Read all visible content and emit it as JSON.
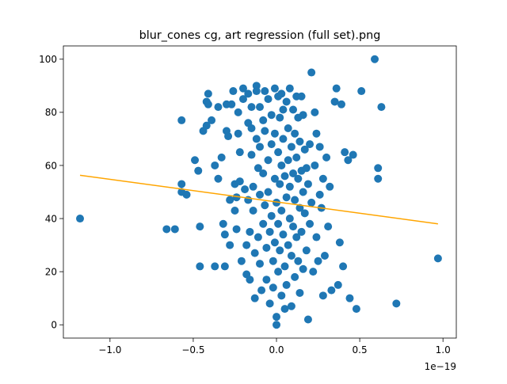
{
  "chart_data": {
    "type": "scatter",
    "title": "blur_cones cg, art regression (full set).png",
    "xlabel": "",
    "ylabel": "",
    "x_offset_text": "1e−19",
    "xlim": [
      -1.28,
      1.08
    ],
    "ylim": [
      -5,
      105
    ],
    "x_ticks": [
      -1.0,
      -0.5,
      0.0,
      0.5,
      1.0
    ],
    "x_tick_labels": [
      "−1.0",
      "−0.5",
      "0.0",
      "0.5",
      "1.0"
    ],
    "y_ticks": [
      0,
      20,
      40,
      60,
      80,
      100
    ],
    "y_tick_labels": [
      "0",
      "20",
      "40",
      "60",
      "80",
      "100"
    ],
    "grid": false,
    "colors": {
      "points": "#1f77b4",
      "regression": "#ffa500"
    },
    "series": [
      {
        "kind": "points",
        "points": [
          [
            -1.18,
            40
          ],
          [
            -0.66,
            36
          ],
          [
            -0.61,
            36
          ],
          [
            -0.57,
            77
          ],
          [
            -0.57,
            53
          ],
          [
            -0.57,
            50
          ],
          [
            -0.54,
            49
          ],
          [
            -0.49,
            62
          ],
          [
            -0.47,
            58
          ],
          [
            -0.46,
            37
          ],
          [
            -0.46,
            22
          ],
          [
            -0.44,
            73
          ],
          [
            -0.42,
            75
          ],
          [
            -0.42,
            84
          ],
          [
            -0.41,
            87
          ],
          [
            -0.41,
            83
          ],
          [
            -0.39,
            77
          ],
          [
            -0.37,
            60
          ],
          [
            -0.37,
            22
          ],
          [
            -0.35,
            55
          ],
          [
            -0.35,
            82
          ],
          [
            -0.33,
            63
          ],
          [
            -0.32,
            38
          ],
          [
            -0.31,
            34
          ],
          [
            -0.31,
            22
          ],
          [
            -0.3,
            83
          ],
          [
            -0.3,
            73
          ],
          [
            -0.29,
            71
          ],
          [
            -0.28,
            47
          ],
          [
            -0.28,
            30
          ],
          [
            -0.27,
            83
          ],
          [
            -0.26,
            88
          ],
          [
            -0.25,
            53
          ],
          [
            -0.25,
            43
          ],
          [
            -0.24,
            48
          ],
          [
            -0.24,
            36
          ],
          [
            -0.23,
            80
          ],
          [
            -0.23,
            72
          ],
          [
            -0.22,
            65
          ],
          [
            -0.22,
            54
          ],
          [
            -0.21,
            24
          ],
          [
            -0.2,
            89
          ],
          [
            -0.2,
            85
          ],
          [
            -0.19,
            51
          ],
          [
            -0.18,
            19
          ],
          [
            -0.18,
            30
          ],
          [
            -0.17,
            87
          ],
          [
            -0.17,
            76
          ],
          [
            -0.17,
            47
          ],
          [
            -0.16,
            35
          ],
          [
            -0.16,
            17
          ],
          [
            -0.15,
            82
          ],
          [
            -0.15,
            74
          ],
          [
            -0.15,
            64
          ],
          [
            -0.14,
            52
          ],
          [
            -0.14,
            43
          ],
          [
            -0.13,
            27
          ],
          [
            -0.13,
            10
          ],
          [
            -0.12,
            90
          ],
          [
            -0.12,
            88
          ],
          [
            -0.12,
            70
          ],
          [
            -0.11,
            59
          ],
          [
            -0.11,
            33
          ],
          [
            -0.1,
            82
          ],
          [
            -0.1,
            67
          ],
          [
            -0.1,
            49
          ],
          [
            -0.1,
            23
          ],
          [
            -0.09,
            13
          ],
          [
            -0.08,
            77
          ],
          [
            -0.08,
            57
          ],
          [
            -0.08,
            38
          ],
          [
            -0.07,
            88
          ],
          [
            -0.07,
            73
          ],
          [
            -0.07,
            45
          ],
          [
            -0.06,
            29
          ],
          [
            -0.06,
            17
          ],
          [
            -0.05,
            85
          ],
          [
            -0.05,
            62
          ],
          [
            -0.05,
            50
          ],
          [
            -0.04,
            35
          ],
          [
            -0.04,
            8
          ],
          [
            -0.03,
            79
          ],
          [
            -0.03,
            68
          ],
          [
            -0.03,
            41
          ],
          [
            -0.02,
            24
          ],
          [
            -0.02,
            14
          ],
          [
            -0.01,
            89
          ],
          [
            -0.01,
            72
          ],
          [
            -0.01,
            55
          ],
          [
            -0.01,
            31
          ],
          [
            0.0,
            46
          ],
          [
            0.0,
            3
          ],
          [
            0.0,
            0
          ],
          [
            0.01,
            86
          ],
          [
            0.01,
            65
          ],
          [
            0.01,
            38
          ],
          [
            0.01,
            20
          ],
          [
            0.02,
            78
          ],
          [
            0.02,
            53
          ],
          [
            0.02,
            28
          ],
          [
            0.03,
            87
          ],
          [
            0.03,
            60
          ],
          [
            0.03,
            43
          ],
          [
            0.03,
            11
          ],
          [
            0.04,
            81
          ],
          [
            0.04,
            70
          ],
          [
            0.04,
            34
          ],
          [
            0.05,
            56
          ],
          [
            0.05,
            22
          ],
          [
            0.05,
            6
          ],
          [
            0.06,
            84
          ],
          [
            0.06,
            48
          ],
          [
            0.06,
            15
          ],
          [
            0.07,
            74
          ],
          [
            0.07,
            62
          ],
          [
            0.07,
            30
          ],
          [
            0.08,
            89
          ],
          [
            0.08,
            52
          ],
          [
            0.08,
            40
          ],
          [
            0.09,
            67
          ],
          [
            0.09,
            26
          ],
          [
            0.09,
            7
          ],
          [
            0.1,
            81
          ],
          [
            0.1,
            57
          ],
          [
            0.1,
            37
          ],
          [
            0.11,
            72
          ],
          [
            0.11,
            47
          ],
          [
            0.11,
            18
          ],
          [
            0.12,
            86
          ],
          [
            0.12,
            63
          ],
          [
            0.12,
            33
          ],
          [
            0.13,
            78
          ],
          [
            0.13,
            55
          ],
          [
            0.13,
            24
          ],
          [
            0.14,
            69
          ],
          [
            0.14,
            44
          ],
          [
            0.14,
            12
          ],
          [
            0.15,
            86
          ],
          [
            0.15,
            58
          ],
          [
            0.15,
            35
          ],
          [
            0.16,
            79
          ],
          [
            0.16,
            50
          ],
          [
            0.16,
            21
          ],
          [
            0.17,
            66
          ],
          [
            0.17,
            42
          ],
          [
            0.18,
            59
          ],
          [
            0.18,
            28
          ],
          [
            0.19,
            53
          ],
          [
            0.19,
            2
          ],
          [
            0.2,
            68
          ],
          [
            0.2,
            38
          ],
          [
            0.21,
            95
          ],
          [
            0.21,
            46
          ],
          [
            0.22,
            20
          ],
          [
            0.23,
            60
          ],
          [
            0.23,
            80
          ],
          [
            0.24,
            72
          ],
          [
            0.24,
            33
          ],
          [
            0.25,
            24
          ],
          [
            0.26,
            67
          ],
          [
            0.26,
            49
          ],
          [
            0.27,
            44
          ],
          [
            0.28,
            55
          ],
          [
            0.28,
            11
          ],
          [
            0.29,
            26
          ],
          [
            0.3,
            63
          ],
          [
            0.31,
            37
          ],
          [
            0.32,
            52
          ],
          [
            0.33,
            13
          ],
          [
            0.35,
            84
          ],
          [
            0.36,
            89
          ],
          [
            0.37,
            15
          ],
          [
            0.38,
            31
          ],
          [
            0.39,
            83
          ],
          [
            0.4,
            22
          ],
          [
            0.41,
            65
          ],
          [
            0.43,
            62
          ],
          [
            0.44,
            10
          ],
          [
            0.46,
            64
          ],
          [
            0.48,
            6
          ],
          [
            0.51,
            88
          ],
          [
            0.59,
            100
          ],
          [
            0.61,
            59
          ],
          [
            0.61,
            55
          ],
          [
            0.63,
            82
          ],
          [
            0.72,
            8
          ],
          [
            0.97,
            25
          ]
        ]
      },
      {
        "kind": "line",
        "x": [
          -1.18,
          0.97
        ],
        "y": [
          56.3,
          38.0
        ]
      }
    ]
  }
}
